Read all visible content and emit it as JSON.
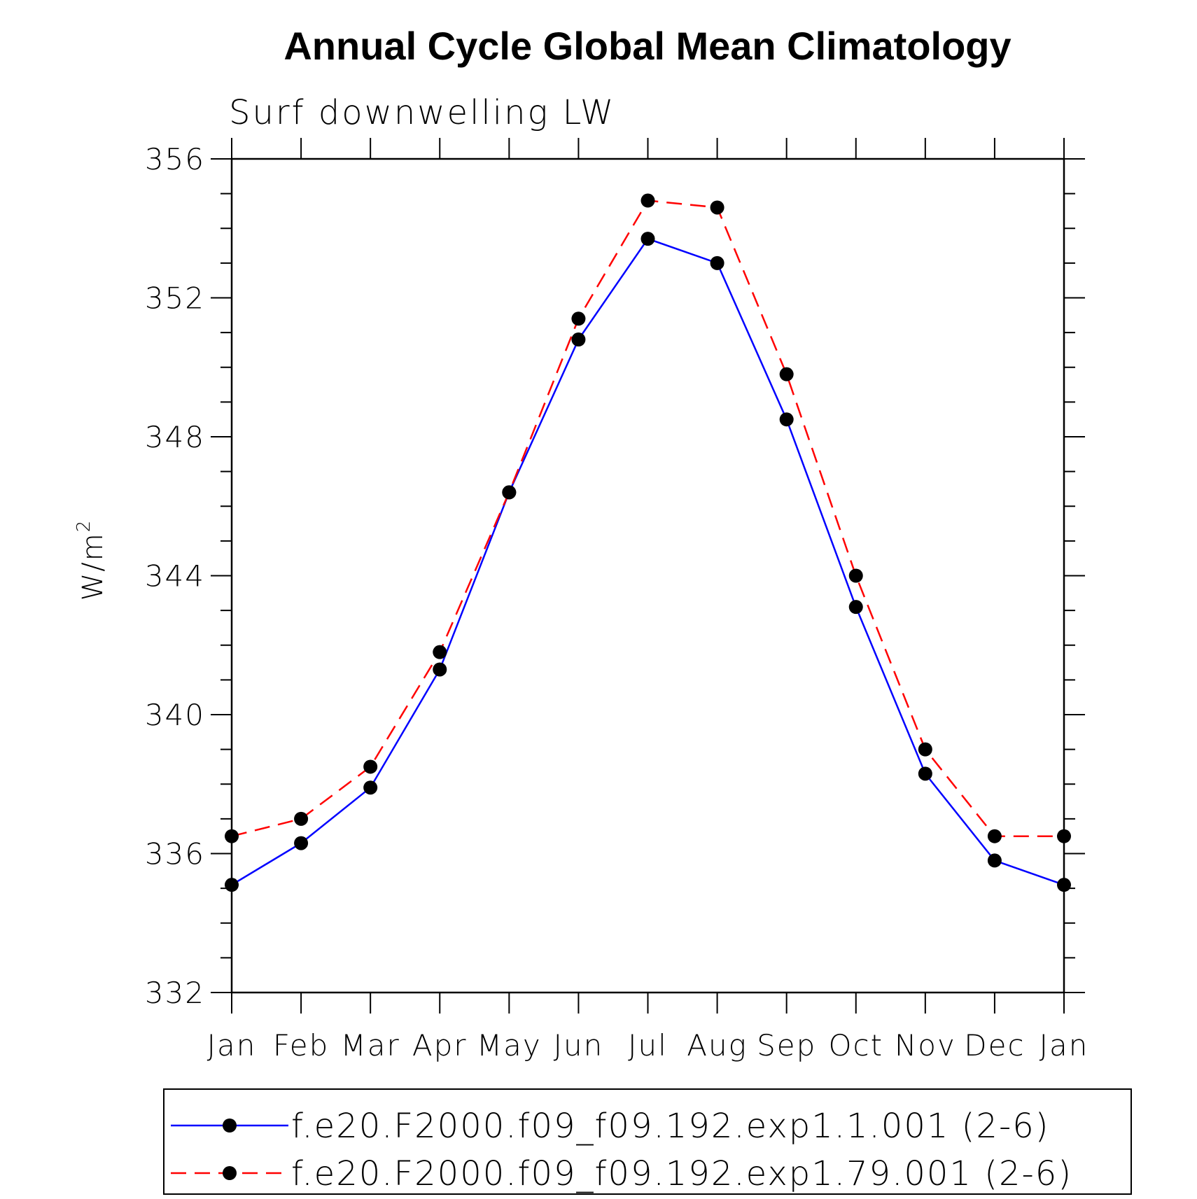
{
  "chart_data": {
    "type": "line",
    "title": "Annual Cycle Global Mean Climatology",
    "subtitle": "Surf downwelling LW",
    "ylabel": "W/m",
    "ylabel_superscript": "2",
    "xlabel": "",
    "categories": [
      "Jan",
      "Feb",
      "Mar",
      "Apr",
      "May",
      "Jun",
      "Jul",
      "Aug",
      "Sep",
      "Oct",
      "Nov",
      "Dec",
      "Jan"
    ],
    "ylim": [
      332,
      356
    ],
    "yticks": [
      332,
      336,
      340,
      344,
      348,
      352,
      356
    ],
    "yticks_minor_step": 1,
    "grid": false,
    "legend_position": "bottom",
    "series": [
      {
        "name": "f.e20.F2000.f09_f09.192.exp1.1.001 (2-6)",
        "color": "#0000ff",
        "line_style": "solid",
        "marker": "filled-circle",
        "values": [
          335.1,
          336.3,
          337.9,
          341.3,
          346.4,
          350.8,
          353.7,
          353.0,
          348.5,
          343.1,
          338.3,
          335.8,
          335.1
        ]
      },
      {
        "name": "f.e20.F2000.f09_f09.192.exp1.79.001 (2-6)",
        "color": "#ff0000",
        "line_style": "dashed",
        "marker": "filled-circle",
        "values": [
          336.5,
          337.0,
          338.5,
          341.8,
          346.4,
          351.4,
          354.8,
          354.6,
          349.8,
          344.0,
          339.0,
          336.5,
          336.5
        ]
      }
    ]
  }
}
